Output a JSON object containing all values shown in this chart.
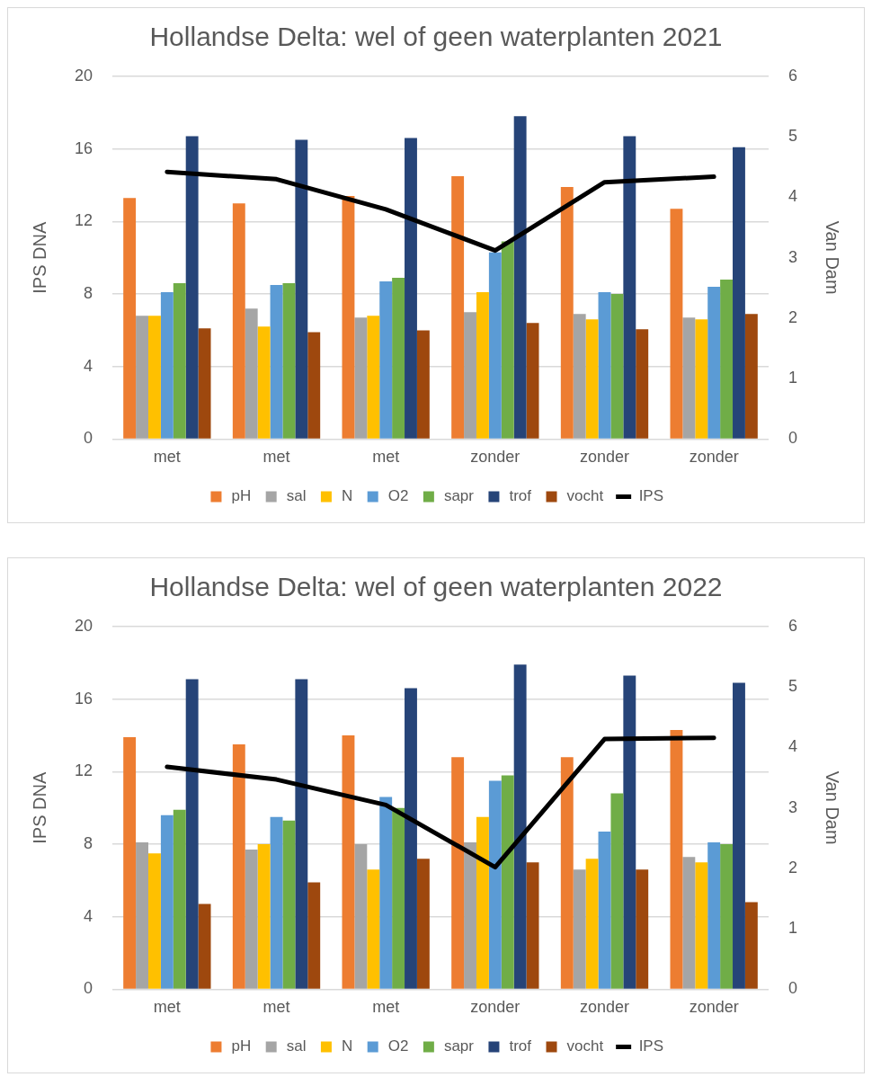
{
  "chart_data": [
    {
      "type": "bar",
      "title": "Hollandse Delta: wel of geen waterplanten 2021",
      "ylabel": "IPS DNA",
      "y2label": "Van Dam",
      "categories": [
        "met",
        "met",
        "met",
        "zonder",
        "zonder",
        "zonder"
      ],
      "series": [
        {
          "name": "pH",
          "color": "#ed7d31",
          "values": [
            13.3,
            13.0,
            13.4,
            14.5,
            13.9,
            12.7
          ]
        },
        {
          "name": "sal",
          "color": "#a5a5a5",
          "values": [
            6.8,
            7.2,
            6.7,
            7.0,
            6.9,
            6.7
          ]
        },
        {
          "name": "N",
          "color": "#ffc000",
          "values": [
            6.8,
            6.2,
            6.8,
            8.1,
            6.6,
            6.6
          ]
        },
        {
          "name": "O2",
          "color": "#5b9bd5",
          "values": [
            8.1,
            8.5,
            8.7,
            10.3,
            8.1,
            8.4
          ]
        },
        {
          "name": "sapr",
          "color": "#70ad47",
          "values": [
            8.6,
            8.6,
            8.9,
            10.9,
            8.0,
            8.8
          ]
        },
        {
          "name": "trof",
          "color": "#264478",
          "values": [
            16.7,
            16.5,
            16.6,
            17.8,
            16.7,
            16.1
          ]
        },
        {
          "name": "vocht",
          "color": "#9e480e",
          "values": [
            6.1,
            5.9,
            6.0,
            6.4,
            6.05,
            6.9
          ]
        },
        {
          "name": "IPS",
          "type": "line",
          "axis": "y2",
          "color": "#000000",
          "values": [
            4.42,
            4.3,
            3.8,
            3.12,
            4.25,
            4.34
          ]
        }
      ],
      "ylim": [
        0,
        20
      ],
      "yticks": [
        0,
        4,
        8,
        12,
        16,
        20
      ],
      "y2lim": [
        0,
        6
      ],
      "y2ticks": [
        0,
        1,
        2,
        3,
        4,
        5,
        6
      ],
      "grid": "y",
      "legend": "bottom",
      "marker": "none",
      "line_style": "solid"
    },
    {
      "type": "bar",
      "title": "Hollandse Delta: wel of geen waterplanten 2022",
      "ylabel": "IPS DNA",
      "y2label": "Van Dam",
      "categories": [
        "met",
        "met",
        "met",
        "zonder",
        "zonder",
        "zonder"
      ],
      "series": [
        {
          "name": "pH",
          "color": "#ed7d31",
          "values": [
            13.9,
            13.5,
            14.0,
            12.8,
            12.8,
            14.3
          ]
        },
        {
          "name": "sal",
          "color": "#a5a5a5",
          "values": [
            8.1,
            7.7,
            8.0,
            8.1,
            6.6,
            7.3
          ]
        },
        {
          "name": "N",
          "color": "#ffc000",
          "values": [
            7.5,
            8.0,
            6.6,
            9.5,
            7.2,
            7.0
          ]
        },
        {
          "name": "O2",
          "color": "#5b9bd5",
          "values": [
            9.6,
            9.5,
            10.6,
            11.5,
            8.7,
            8.1
          ]
        },
        {
          "name": "sapr",
          "color": "#70ad47",
          "values": [
            9.9,
            9.3,
            10.0,
            11.8,
            10.8,
            8.0
          ]
        },
        {
          "name": "trof",
          "color": "#264478",
          "values": [
            17.1,
            17.1,
            16.6,
            17.9,
            17.3,
            16.9
          ]
        },
        {
          "name": "vocht",
          "color": "#9e480e",
          "values": [
            4.7,
            5.9,
            7.2,
            7.0,
            6.6,
            4.8
          ]
        },
        {
          "name": "IPS",
          "type": "line",
          "axis": "y2",
          "color": "#000000",
          "values": [
            3.68,
            3.47,
            3.05,
            2.02,
            4.14,
            4.16
          ]
        }
      ],
      "ylim": [
        0,
        20
      ],
      "yticks": [
        0,
        4,
        8,
        12,
        16,
        20
      ],
      "y2lim": [
        0,
        6
      ],
      "y2ticks": [
        0,
        1,
        2,
        3,
        4,
        5,
        6
      ],
      "grid": "y",
      "legend": "bottom",
      "marker": "none",
      "line_style": "solid"
    }
  ]
}
